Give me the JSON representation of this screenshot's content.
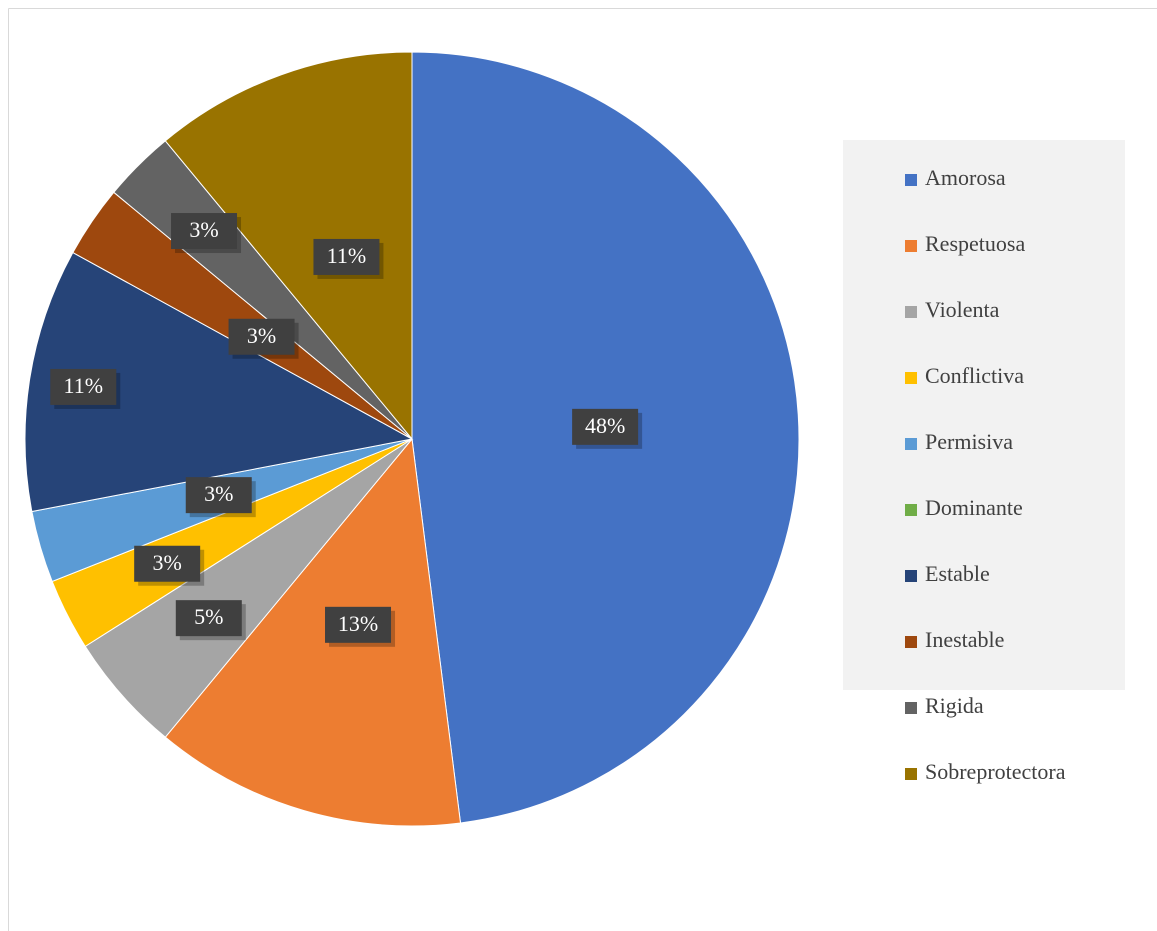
{
  "chart_data": {
    "type": "pie",
    "categories": [
      "Amorosa",
      "Respetuosa",
      "Violenta",
      "Conflictiva",
      "Permisiva",
      "Dominante",
      "Estable",
      "Inestable",
      "Rigida",
      "Sobreprotectora"
    ],
    "values": [
      48,
      13,
      5,
      3,
      3,
      0,
      11,
      3,
      3,
      11
    ],
    "value_labels": [
      "48%",
      "13%",
      "5%",
      "3%",
      "3%",
      null,
      "11%",
      "3%",
      "3%",
      "11%"
    ],
    "colors": [
      "#4472c4",
      "#ed7d31",
      "#a5a5a5",
      "#ffc000",
      "#5b9bd5",
      "#70ad47",
      "#264478",
      "#9e480e",
      "#636363",
      "#997300"
    ],
    "legend": "right"
  }
}
